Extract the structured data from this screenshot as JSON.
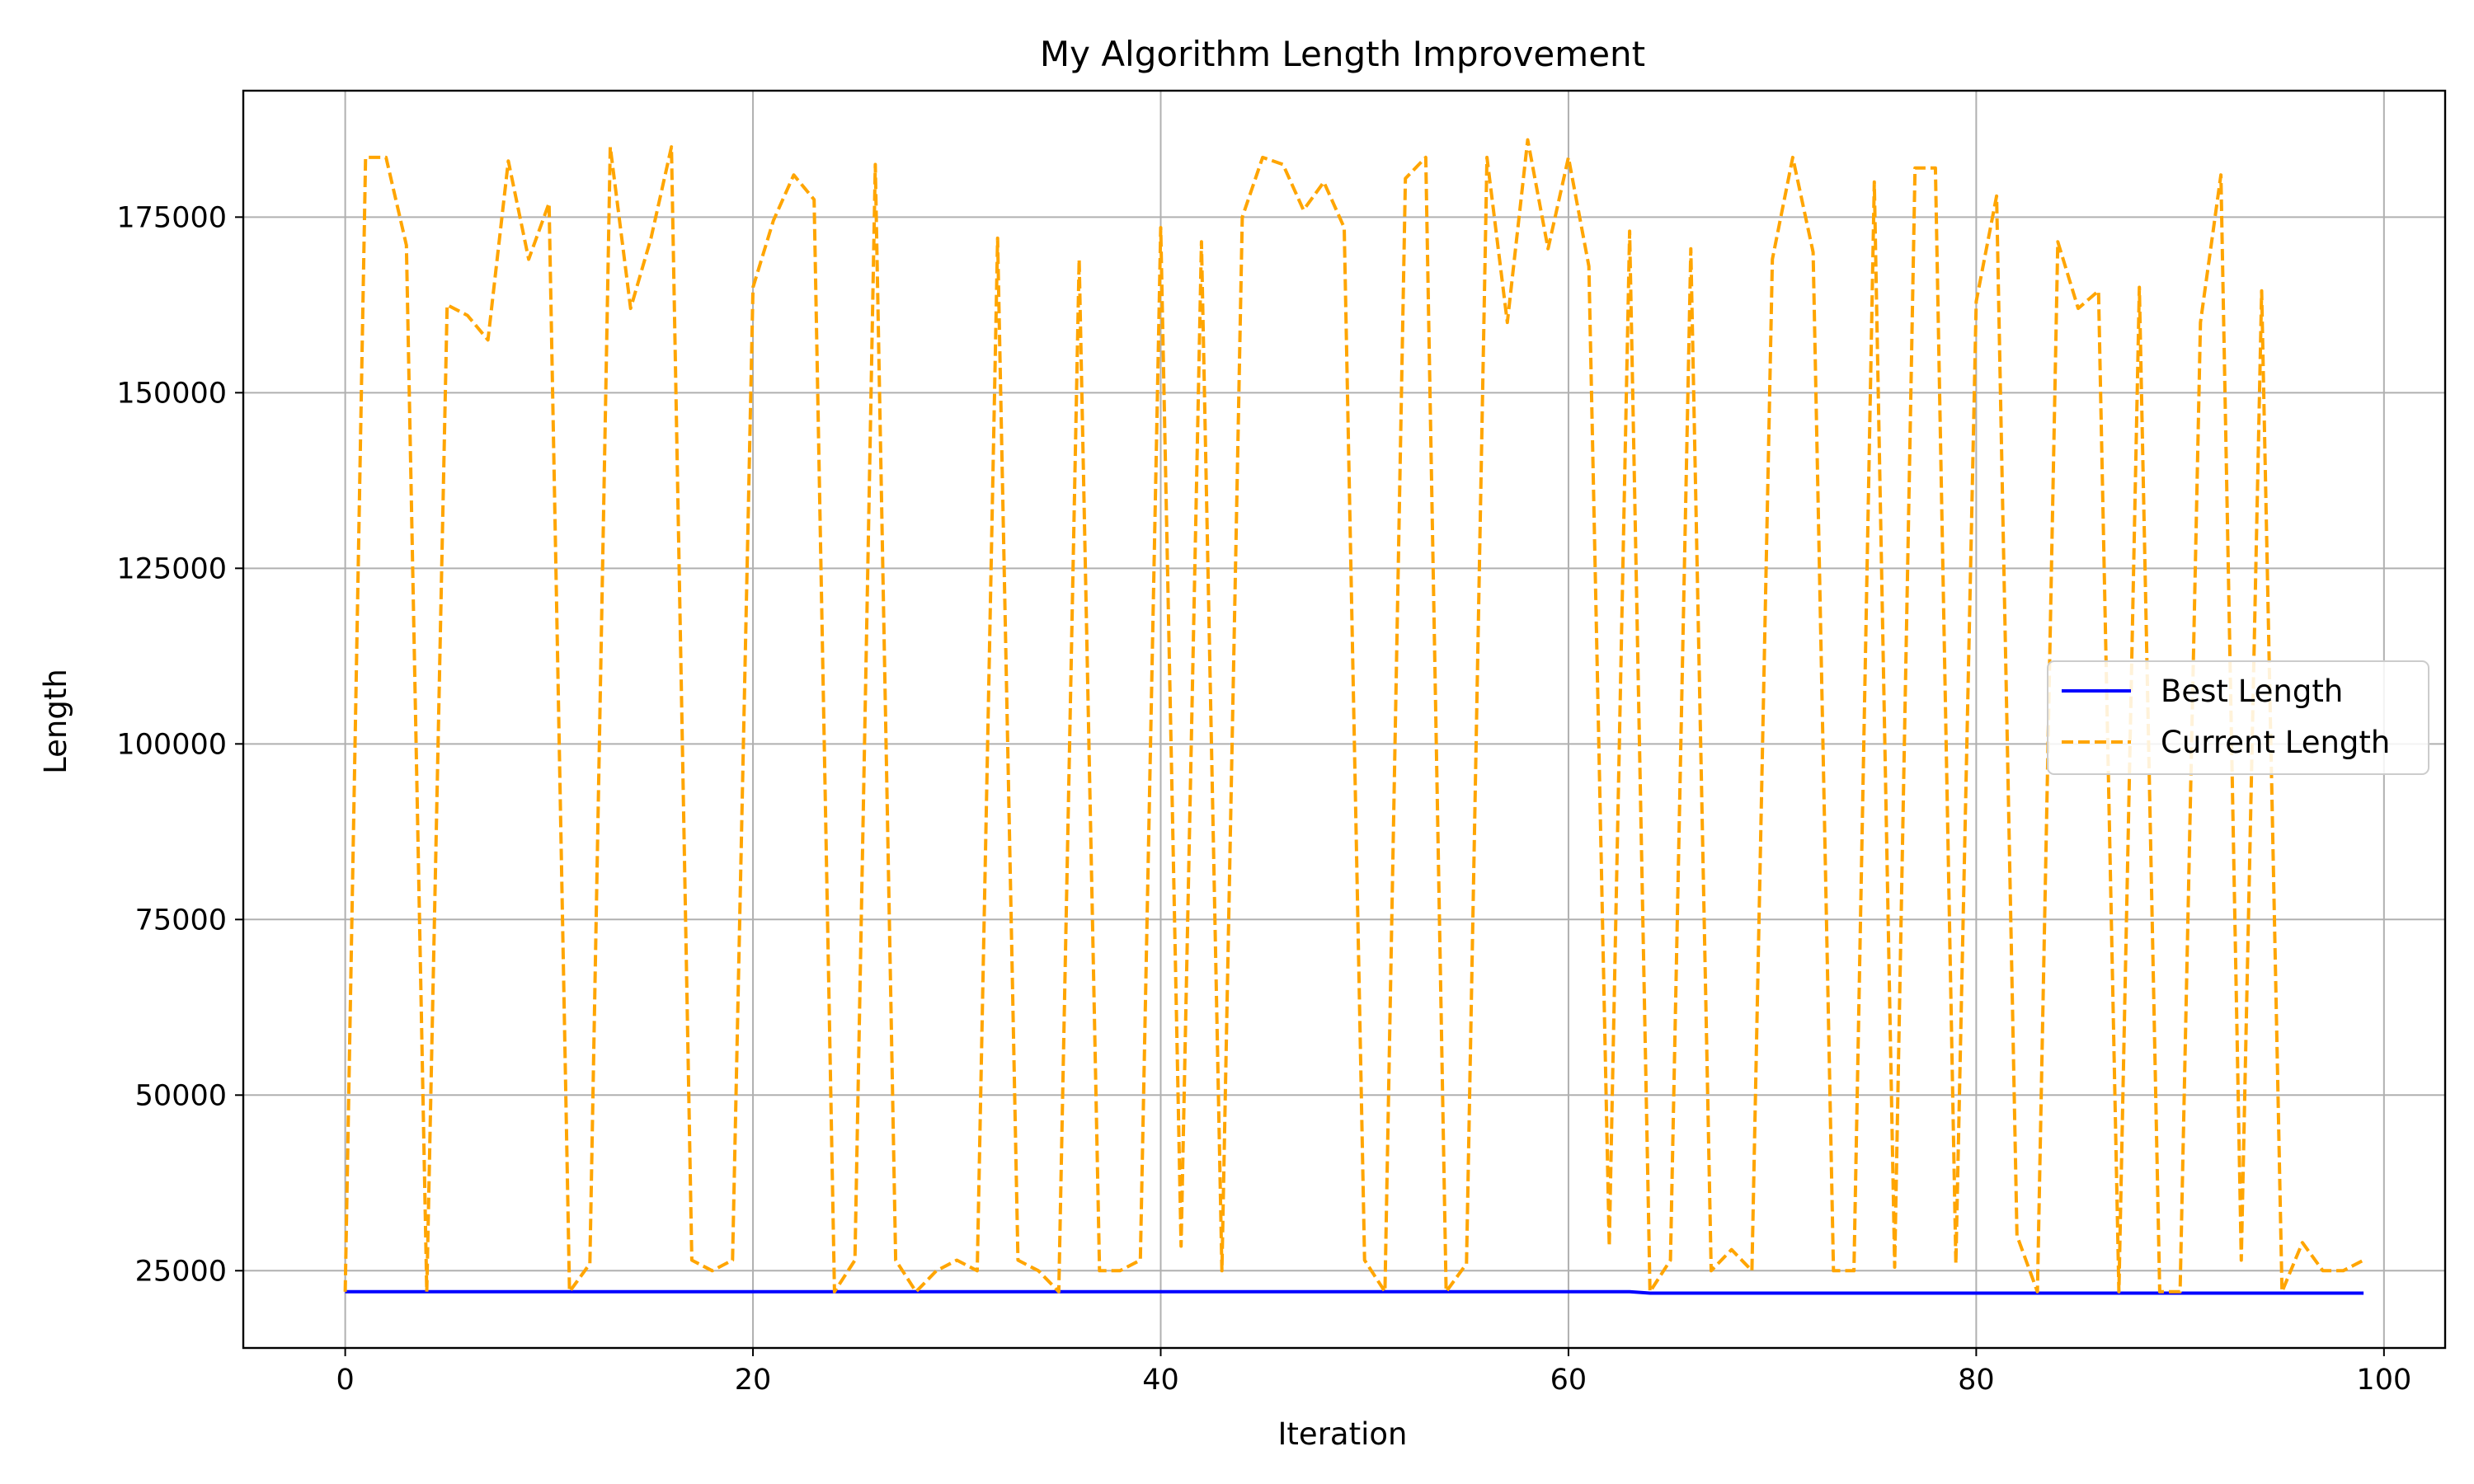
{
  "chart_data": {
    "type": "line",
    "title": "My Algorithm Length Improvement",
    "xlabel": "Iteration",
    "ylabel": "Length",
    "xlim": [
      -5,
      103
    ],
    "ylim": [
      14000,
      193000
    ],
    "xticks": [
      0,
      20,
      40,
      60,
      80,
      100
    ],
    "yticks": [
      25000,
      50000,
      75000,
      100000,
      125000,
      150000,
      175000
    ],
    "grid": true,
    "legend_position": "center-right",
    "series": [
      {
        "name": "Best Length",
        "color": "#0000ff",
        "linestyle": "solid",
        "x": [
          0,
          10,
          20,
          30,
          40,
          50,
          60,
          63,
          64,
          70,
          80,
          90,
          99
        ],
        "y": [
          22000,
          22000,
          22000,
          22000,
          22000,
          22000,
          22000,
          22000,
          21800,
          21800,
          21800,
          21800,
          21800
        ]
      },
      {
        "name": "Current Length",
        "color": "#ffa500",
        "linestyle": "dashed",
        "x": [
          0,
          1,
          2,
          3,
          4,
          5,
          6,
          7,
          8,
          9,
          10,
          11,
          12,
          13,
          14,
          15,
          16,
          17,
          18,
          19,
          20,
          21,
          22,
          23,
          24,
          25,
          26,
          27,
          28,
          29,
          30,
          31,
          32,
          33,
          34,
          35,
          36,
          37,
          38,
          39,
          40,
          41,
          42,
          43,
          44,
          45,
          46,
          47,
          48,
          49,
          50,
          51,
          52,
          53,
          54,
          55,
          56,
          57,
          58,
          59,
          60,
          61,
          62,
          63,
          64,
          65,
          66,
          67,
          68,
          69,
          70,
          71,
          72,
          73,
          74,
          75,
          76,
          77,
          78,
          79,
          80,
          81,
          82,
          83,
          84,
          85,
          86,
          87,
          88,
          89,
          90,
          91,
          92,
          93,
          94,
          95,
          96,
          97,
          98,
          99
        ],
        "y": [
          22000,
          183500,
          183500,
          171000,
          22000,
          162500,
          161000,
          157500,
          183000,
          169000,
          177000,
          22000,
          26000,
          185000,
          162000,
          172000,
          185000,
          26500,
          25000,
          26500,
          165000,
          174500,
          181000,
          177500,
          22000,
          26500,
          182500,
          26500,
          22000,
          25000,
          26500,
          25000,
          172000,
          26500,
          25000,
          22000,
          169000,
          25000,
          25000,
          26500,
          173500,
          28500,
          171500,
          25000,
          175000,
          183500,
          182500,
          176000,
          180000,
          173500,
          26500,
          22000,
          180500,
          183500,
          22000,
          26000,
          183500,
          160000,
          186000,
          170500,
          183500,
          168000,
          28500,
          173000,
          22000,
          26500,
          170500,
          25000,
          28000,
          25000,
          169000,
          183500,
          170000,
          25000,
          25000,
          180000,
          25500,
          182000,
          182000,
          26000,
          163000,
          178000,
          30000,
          22000,
          171500,
          162000,
          164500,
          22000,
          165000,
          22000,
          22000,
          160000,
          181000,
          26500,
          164500,
          22000,
          29000,
          25000,
          25000,
          26500
        ]
      }
    ]
  }
}
